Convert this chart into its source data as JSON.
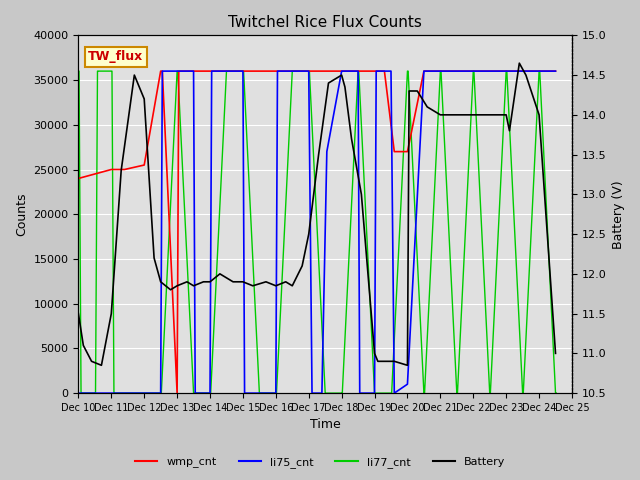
{
  "title": "Twitchel Rice Flux Counts",
  "xlabel": "Time",
  "ylabel_left": "Counts",
  "ylabel_right": "Battery (V)",
  "ylim_left": [
    0,
    40000
  ],
  "ylim_right": [
    10.5,
    15.0
  ],
  "yticks_left": [
    0,
    5000,
    10000,
    15000,
    20000,
    25000,
    30000,
    35000,
    40000
  ],
  "yticks_right": [
    10.5,
    11.0,
    11.5,
    12.0,
    12.5,
    13.0,
    13.5,
    14.0,
    14.5,
    15.0
  ],
  "x_tick_positions": [
    10,
    11,
    12,
    13,
    14,
    15,
    16,
    17,
    18,
    19,
    20,
    21,
    22,
    23,
    24,
    25
  ],
  "x_labels": [
    "Dec 10",
    "Dec 11",
    "Dec 12",
    "Dec 13",
    "Dec 14",
    "Dec 15",
    "Dec 16",
    "Dec 17",
    "Dec 18",
    "Dec 19",
    "Dec 20",
    "Dec 21",
    "Dec 22",
    "Dec 23",
    "Dec 24",
    "Dec 25"
  ],
  "box_label": "TW_flux",
  "box_color": "#ffffcc",
  "box_edge_color": "#cc8800",
  "box_text_color": "#cc0000",
  "legend_entries": [
    "wmp_cnt",
    "li75_cnt",
    "li77_cnt",
    "Battery"
  ],
  "legend_colors": [
    "#ff0000",
    "#0000ff",
    "#00cc00",
    "#000000"
  ],
  "line_colors": {
    "wmp_cnt": "#ff0000",
    "li75_cnt": "#0000ff",
    "li77_cnt": "#00cc00",
    "Battery": "#000000"
  },
  "background_color": "#c8c8c8",
  "plot_bg_color": "#e0e0e0",
  "grid_color": "#ffffff",
  "wmp_cnt_x": [
    10.0,
    10.3,
    10.6,
    11.0,
    11.4,
    12.0,
    12.5,
    12.55,
    13.0,
    13.05,
    14.0,
    14.5,
    15.0,
    15.5,
    16.0,
    16.5,
    17.0,
    17.5,
    18.0,
    18.5,
    19.0,
    19.3,
    19.6,
    20.0,
    20.5,
    21.0,
    21.5,
    22.0,
    22.5,
    23.0,
    23.5,
    24.0,
    24.5
  ],
  "wmp_cnt_y": [
    24000,
    24300,
    24600,
    25000,
    25000,
    25500,
    36000,
    36000,
    0,
    36000,
    36000,
    36000,
    36000,
    36000,
    36000,
    36000,
    36000,
    36000,
    36000,
    36000,
    36000,
    36000,
    27000,
    27000,
    36000,
    36000,
    36000,
    36000,
    36000,
    36000,
    36000,
    36000,
    36000
  ],
  "li75_cnt_x": [
    10.0,
    10.5,
    12.4,
    12.5,
    12.55,
    13.0,
    13.4,
    13.5,
    13.55,
    14.0,
    14.05,
    15.0,
    15.05,
    16.0,
    16.05,
    17.0,
    17.1,
    17.4,
    17.5,
    17.55,
    18.0,
    18.05,
    18.4,
    18.5,
    18.55,
    19.0,
    19.05,
    19.2,
    19.4,
    19.5,
    19.6,
    20.0,
    20.5,
    21.0,
    21.5,
    22.0,
    22.5,
    23.0,
    23.5,
    24.0,
    24.5
  ],
  "li75_cnt_y": [
    0,
    0,
    0,
    0,
    36000,
    36000,
    36000,
    36000,
    0,
    0,
    36000,
    36000,
    0,
    0,
    36000,
    36000,
    0,
    0,
    18000,
    27000,
    36000,
    36000,
    36000,
    36000,
    0,
    0,
    36000,
    36000,
    36000,
    36000,
    0,
    1000,
    36000,
    36000,
    36000,
    36000,
    36000,
    36000,
    36000,
    36000,
    36000
  ],
  "li77_cnt_x": [
    10.0,
    10.02,
    10.08,
    10.1,
    10.5,
    10.52,
    10.58,
    10.6,
    11.0,
    11.02,
    11.08,
    11.1,
    11.5,
    11.52,
    12.0,
    12.02,
    12.5,
    12.52,
    13.0,
    13.02,
    13.5,
    13.52,
    14.0,
    14.02,
    14.5,
    14.52,
    15.0,
    15.02,
    15.5,
    15.52,
    16.0,
    16.02,
    16.5,
    16.52,
    17.0,
    17.02,
    17.5,
    17.52,
    18.0,
    18.02,
    18.5,
    18.52,
    19.0,
    19.02,
    19.5,
    19.52,
    20.0,
    20.02,
    20.5,
    20.52,
    21.0,
    21.02,
    21.5,
    21.52,
    22.0,
    22.02,
    22.5,
    22.52,
    23.0,
    23.02,
    23.5,
    23.52,
    24.0,
    24.02,
    24.5,
    24.52
  ],
  "li77_cnt_y": [
    36000,
    36000,
    0,
    0,
    0,
    0,
    36000,
    36000,
    36000,
    36000,
    0,
    0,
    0,
    0,
    0,
    0,
    0,
    0,
    36000,
    36000,
    0,
    0,
    0,
    0,
    36000,
    36000,
    36000,
    36000,
    0,
    0,
    0,
    0,
    36000,
    36000,
    36000,
    36000,
    0,
    0,
    0,
    0,
    36000,
    36000,
    0,
    0,
    0,
    0,
    36000,
    36000,
    0,
    0,
    36000,
    36000,
    0,
    0,
    36000,
    36000,
    0,
    0,
    36000,
    36000,
    0,
    0,
    36000,
    36000,
    0,
    0
  ],
  "battery_x": [
    10.0,
    10.15,
    10.4,
    10.7,
    11.0,
    11.3,
    11.7,
    12.0,
    12.3,
    12.5,
    12.8,
    13.0,
    13.3,
    13.5,
    13.8,
    14.0,
    14.3,
    14.7,
    15.0,
    15.3,
    15.7,
    16.0,
    16.3,
    16.5,
    16.8,
    17.0,
    17.3,
    17.6,
    18.0,
    18.1,
    18.3,
    18.6,
    19.0,
    19.1,
    19.4,
    19.6,
    20.0,
    20.05,
    20.3,
    20.6,
    21.0,
    21.2,
    21.5,
    21.7,
    22.0,
    22.3,
    22.5,
    22.7,
    23.0,
    23.1,
    23.4,
    23.6,
    24.0,
    24.5
  ],
  "battery_y": [
    11.5,
    11.1,
    10.9,
    10.85,
    11.5,
    13.3,
    14.5,
    14.2,
    12.2,
    11.9,
    11.8,
    11.85,
    11.9,
    11.85,
    11.9,
    11.9,
    12.0,
    11.9,
    11.9,
    11.85,
    11.9,
    11.85,
    11.9,
    11.85,
    12.1,
    12.5,
    13.5,
    14.4,
    14.5,
    14.35,
    13.7,
    13.0,
    11.0,
    10.9,
    10.9,
    10.9,
    10.85,
    14.3,
    14.3,
    14.1,
    14.0,
    14.0,
    14.0,
    14.0,
    14.0,
    14.0,
    14.0,
    14.0,
    14.0,
    13.8,
    14.65,
    14.5,
    14.0,
    11.0
  ]
}
